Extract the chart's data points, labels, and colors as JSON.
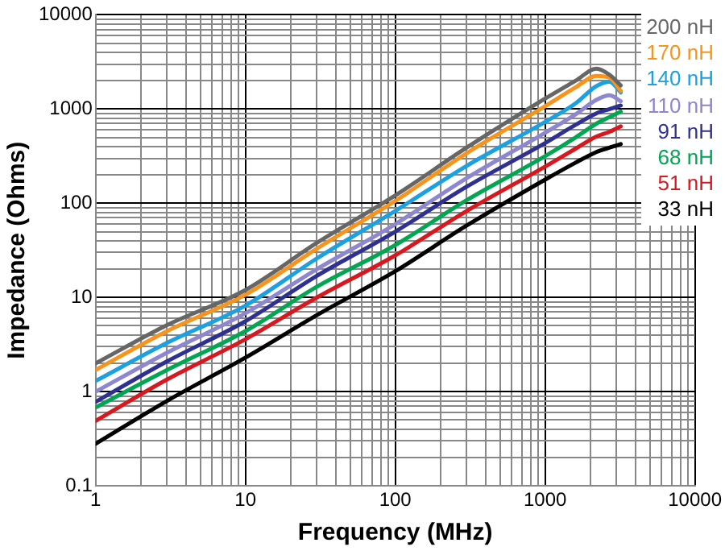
{
  "chart_data": {
    "type": "line",
    "xlabel": "Frequency (MHz)",
    "ylabel": "Impedance (Ohms)",
    "log": "xy",
    "grid": true,
    "legend": "top right",
    "marker": "none",
    "line_style": "solid",
    "xlim": [
      1,
      10000
    ],
    "ylim": [
      0.1,
      10000
    ],
    "xticks": [
      1,
      10,
      100,
      1000,
      10000
    ],
    "yticks": [
      0.1,
      1,
      10,
      100,
      1000,
      10000
    ],
    "x": [
      1,
      3,
      10,
      30,
      100,
      300,
      1000,
      1600,
      2200,
      2700,
      3200
    ],
    "series": [
      {
        "name": "200 nH",
        "color": "#666666",
        "values": [
          2.0,
          5.1,
          12,
          38,
          121,
          390,
          1290,
          2000,
          2680,
          2300,
          1780
        ]
      },
      {
        "name": "170 nH",
        "color": "#f7941d",
        "values": [
          1.7,
          4.4,
          10.7,
          33,
          106,
          340,
          1070,
          1700,
          2250,
          2150,
          1560
        ]
      },
      {
        "name": "140 nH",
        "color": "#1ba1e2",
        "values": [
          1.3,
          3.3,
          8.2,
          26,
          83,
          250,
          730,
          1150,
          1750,
          1950,
          1500
        ]
      },
      {
        "name": "110 nH",
        "color": "#8c87d0",
        "values": [
          1.0,
          2.6,
          6.8,
          20,
          60,
          185,
          560,
          880,
          1250,
          1400,
          1210
        ]
      },
      {
        "name": "91 nH",
        "color": "#2e3192",
        "values": [
          0.78,
          2.1,
          5.6,
          17,
          50,
          150,
          435,
          680,
          900,
          1000,
          1090
        ]
      },
      {
        "name": "68 nH",
        "color": "#00a651",
        "values": [
          0.68,
          1.7,
          4.4,
          13,
          36,
          108,
          316,
          500,
          700,
          825,
          940
        ]
      },
      {
        "name": "51 nH",
        "color": "#d7191f",
        "values": [
          0.49,
          1.35,
          3.6,
          10,
          28,
          83,
          245,
          380,
          510,
          575,
          655
        ]
      },
      {
        "name": "33 nH",
        "color": "#000000",
        "values": [
          0.28,
          0.8,
          2.3,
          6.5,
          19,
          58,
          178,
          270,
          350,
          390,
          425
        ]
      }
    ]
  }
}
